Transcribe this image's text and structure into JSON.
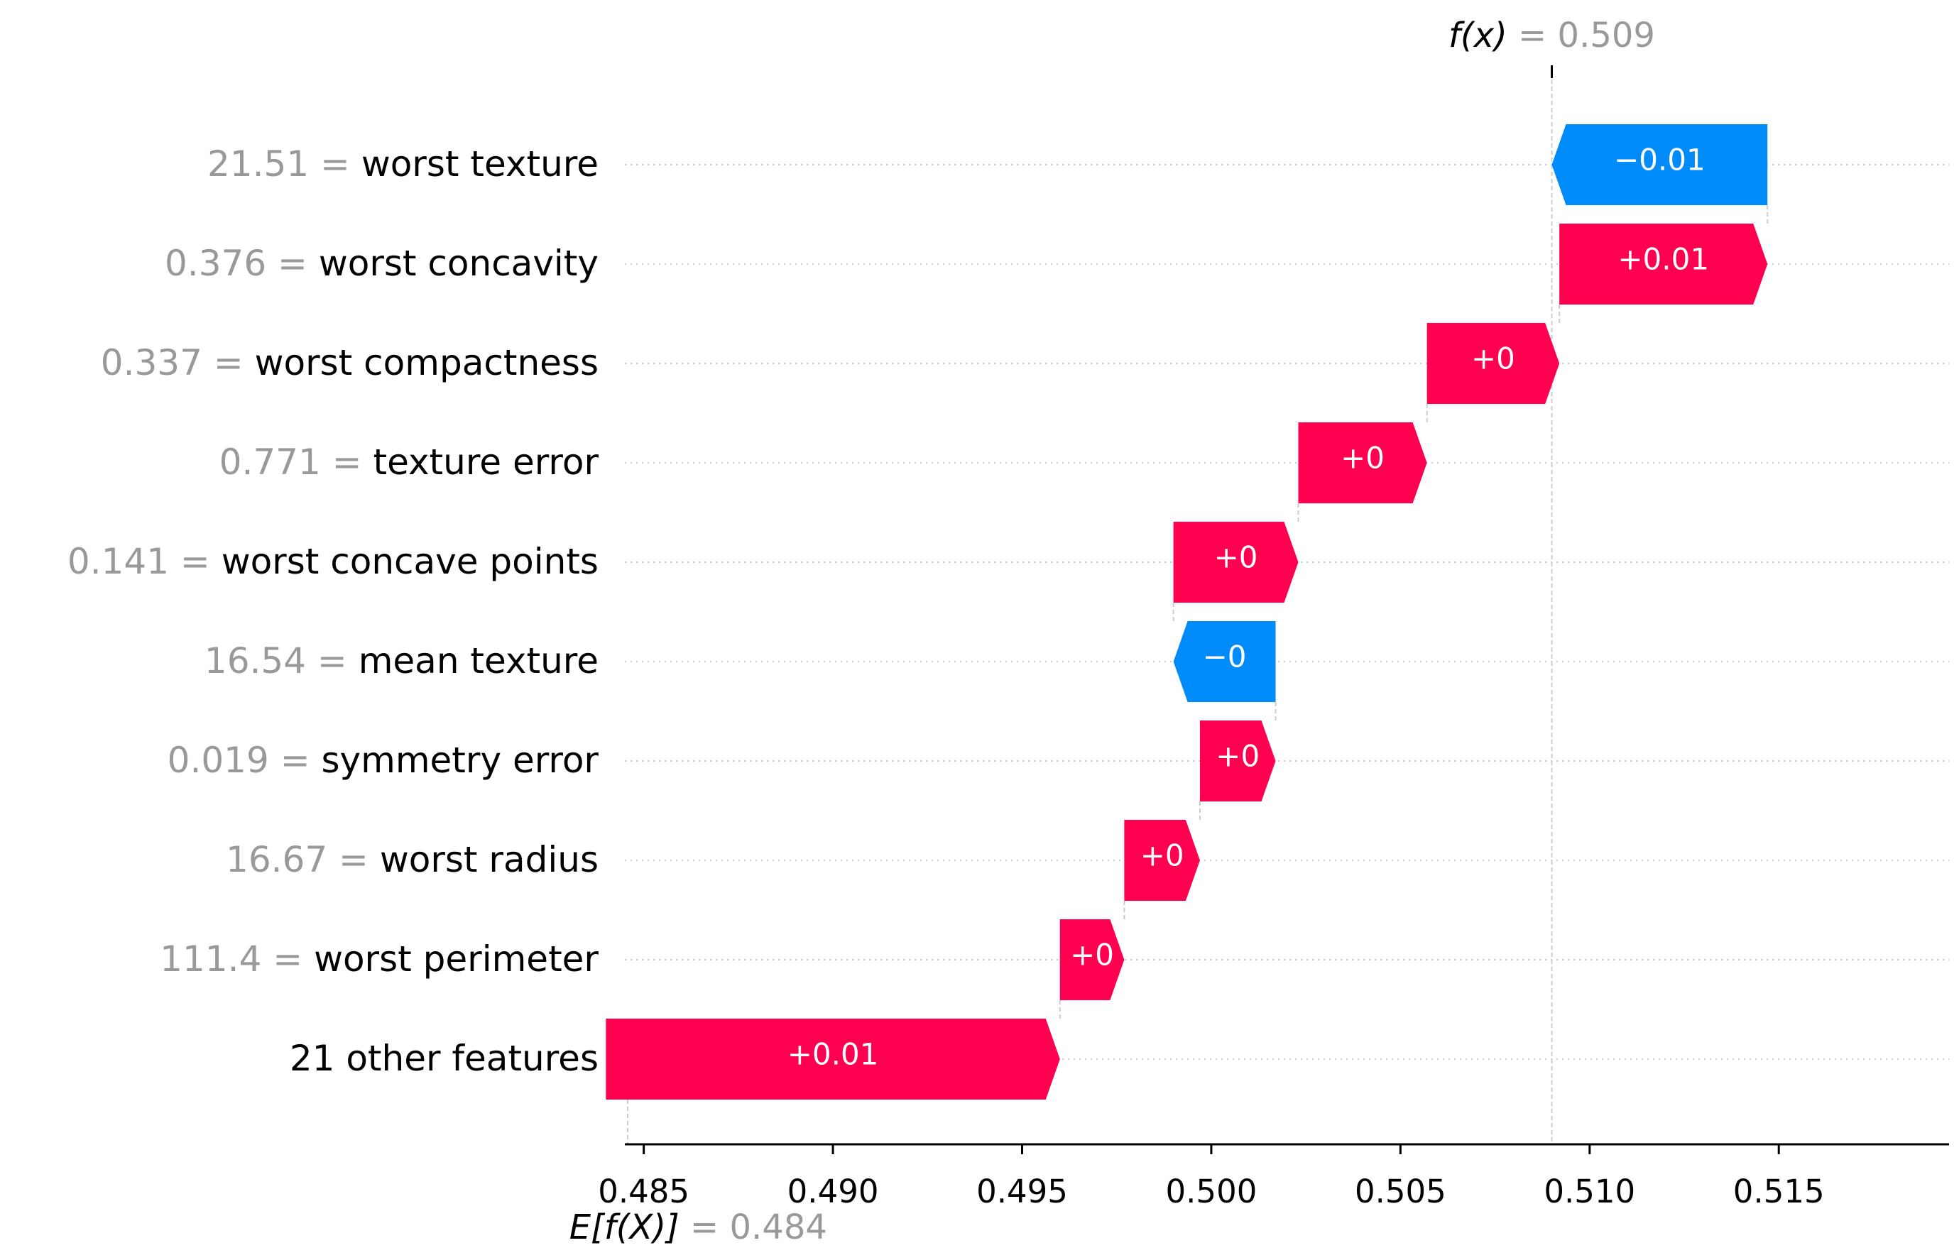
{
  "chart_data": {
    "type": "waterfall",
    "base_value": 0.484,
    "base_label": "E[f(X)]",
    "base_value_text": "0.484",
    "output_value": 0.509,
    "output_label": "f(x)",
    "output_value_text": "0.509",
    "xlim": [
      0.4845,
      0.5195
    ],
    "xticks": [
      0.485,
      0.49,
      0.495,
      0.5,
      0.505,
      0.51,
      0.515
    ],
    "xtick_labels": [
      "0.485",
      "0.490",
      "0.495",
      "0.500",
      "0.505",
      "0.510",
      "0.515"
    ],
    "features": [
      {
        "value": "21.51",
        "name": "worst texture",
        "start": 0.5147,
        "end": 0.509,
        "label": "−0.01"
      },
      {
        "value": "0.376",
        "name": "worst concavity",
        "start": 0.5092,
        "end": 0.5147,
        "label": "+0.01"
      },
      {
        "value": "0.337",
        "name": "worst compactness",
        "start": 0.5057,
        "end": 0.5092,
        "label": "+0"
      },
      {
        "value": "0.771",
        "name": "texture error",
        "start": 0.5023,
        "end": 0.5057,
        "label": "+0"
      },
      {
        "value": "0.141",
        "name": "worst concave points",
        "start": 0.499,
        "end": 0.5023,
        "label": "+0"
      },
      {
        "value": "16.54",
        "name": "mean texture",
        "start": 0.5017,
        "end": 0.499,
        "label": "−0"
      },
      {
        "value": "0.019",
        "name": "symmetry error",
        "start": 0.4997,
        "end": 0.5017,
        "label": "+0"
      },
      {
        "value": "16.67",
        "name": "worst radius",
        "start": 0.4977,
        "end": 0.4997,
        "label": "+0"
      },
      {
        "value": "111.4",
        "name": "worst perimeter",
        "start": 0.496,
        "end": 0.4977,
        "label": "+0"
      },
      {
        "value": "",
        "name": "21 other features",
        "start": 0.484,
        "end": 0.496,
        "label": "+0.01"
      }
    ],
    "colors": {
      "positive": "#ff0051",
      "negative": "#008bfb",
      "muted": "#999999",
      "axis": "#000000",
      "grid": "#cccccc"
    }
  }
}
